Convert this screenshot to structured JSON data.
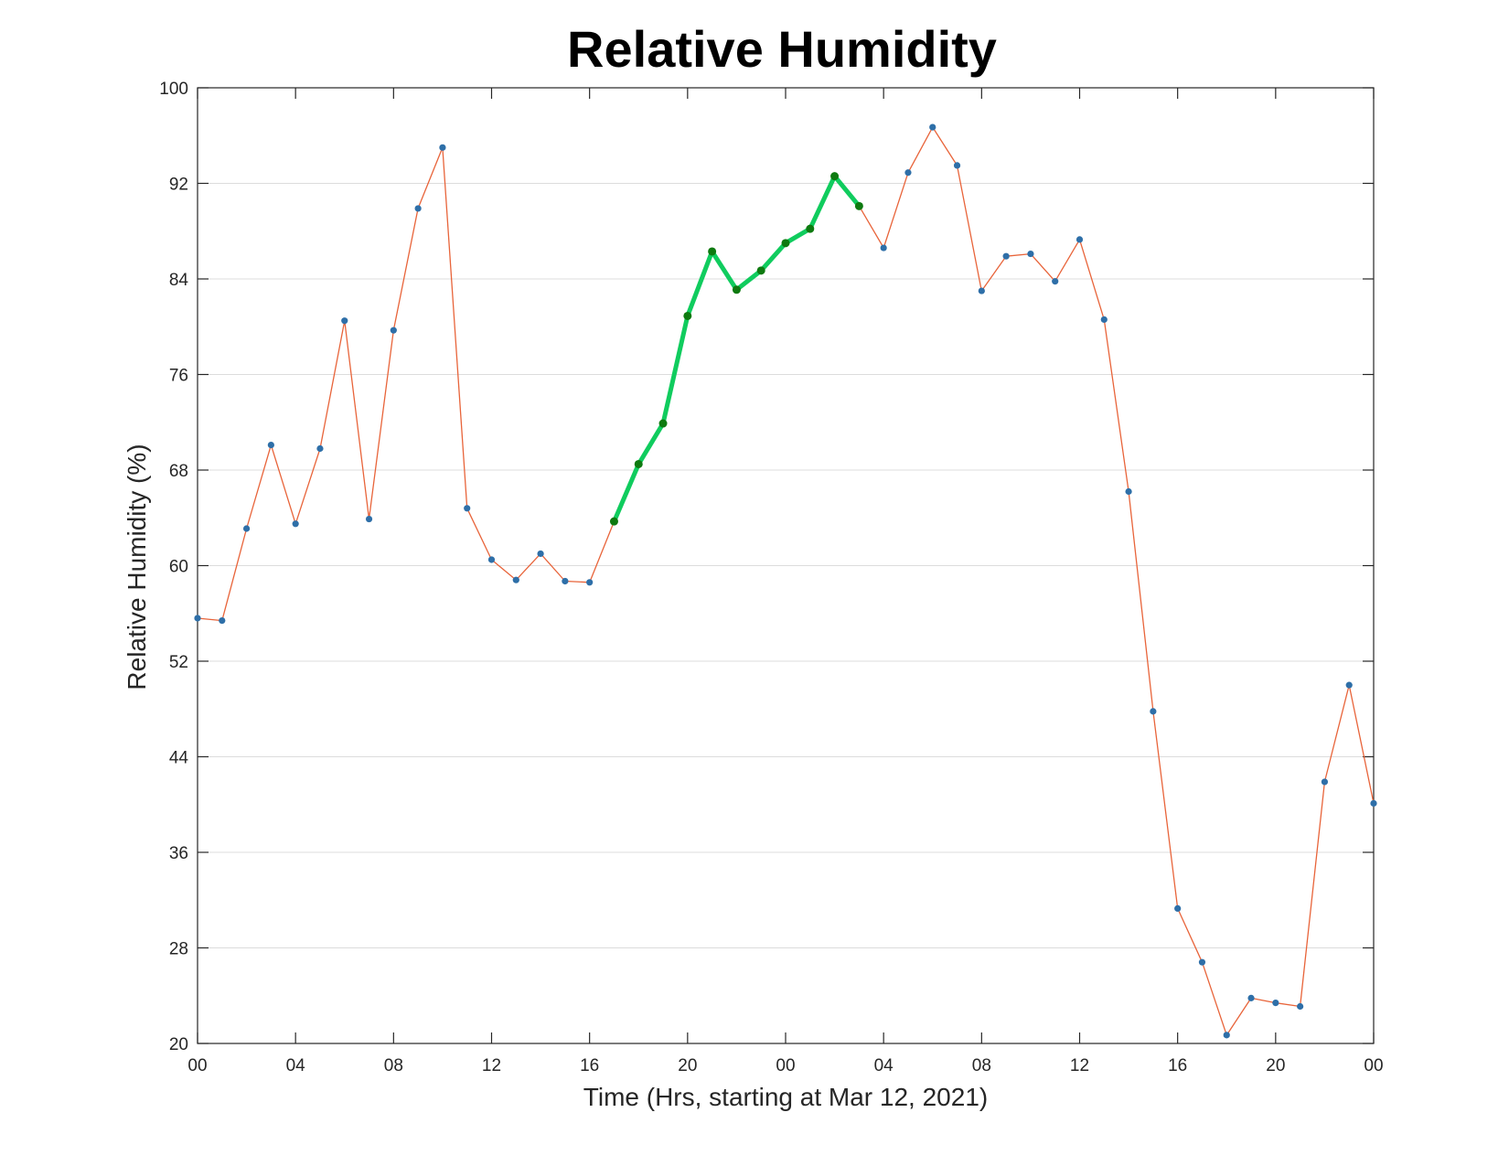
{
  "chart_data": {
    "type": "line",
    "title": "Relative Humidity",
    "xlabel": "Time (Hrs, starting at Mar 12, 2021)",
    "ylabel": "Relative Humidity (%)",
    "x_unit": "hours",
    "xlim": [
      0,
      48
    ],
    "ylim": [
      20,
      100
    ],
    "x_tick_values": [
      0,
      4,
      8,
      12,
      16,
      20,
      24,
      28,
      32,
      36,
      40,
      44,
      48
    ],
    "x_tick_labels": [
      "00",
      "04",
      "08",
      "12",
      "16",
      "20",
      "00",
      "04",
      "08",
      "12",
      "16",
      "20",
      "00"
    ],
    "y_ticks": [
      20,
      28,
      36,
      44,
      52,
      60,
      68,
      76,
      84,
      92,
      100
    ],
    "grid": "horizontal",
    "x": [
      0,
      1,
      2,
      3,
      4,
      5,
      6,
      7,
      8,
      9,
      10,
      11,
      12,
      13,
      14,
      15,
      16,
      17,
      18,
      19,
      20,
      21,
      22,
      23,
      24,
      25,
      26,
      27,
      28,
      29,
      30,
      31,
      32,
      33,
      34,
      35,
      36,
      37,
      38,
      39,
      40,
      41,
      42,
      43,
      44,
      45,
      46,
      47,
      48
    ],
    "series": [
      {
        "values": [
          55.6,
          55.4,
          63.1,
          70.1,
          63.5,
          69.8,
          80.5,
          63.9,
          79.7,
          89.9,
          95.0,
          64.8,
          60.5,
          58.8,
          61.0,
          58.7,
          58.6,
          63.7,
          68.5,
          71.9,
          80.9,
          86.3,
          83.1,
          84.7,
          87.0,
          88.2,
          92.6,
          90.1,
          86.6,
          92.9,
          96.7,
          93.5,
          83.0,
          85.9,
          86.1,
          83.8,
          87.3,
          80.6,
          66.2,
          47.8,
          31.3,
          26.8,
          20.7,
          23.8,
          23.4,
          23.1,
          41.9,
          50.0,
          40.1
        ],
        "line_color": "#e8643a",
        "marker_color": "#2e6fa8"
      }
    ],
    "highlight": {
      "x_start": 17,
      "x_end": 27,
      "line_color": "#10cc5e",
      "marker_color": "#0e7a10"
    }
  }
}
